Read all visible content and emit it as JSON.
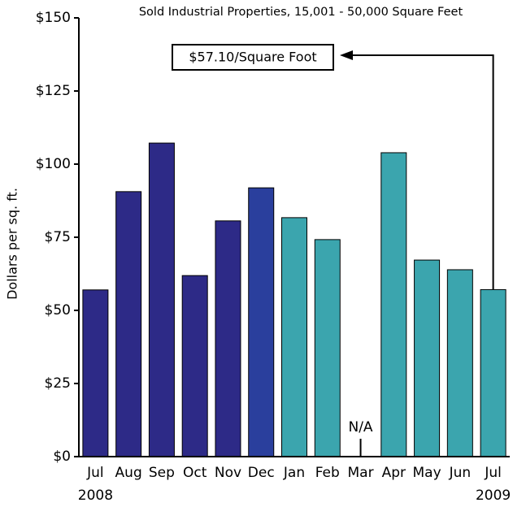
{
  "chart_data": {
    "type": "bar",
    "title": "Sold Industrial Properties, 15,001 - 50,000 Square Feet",
    "y_label": "Dollars per sq. ft.",
    "categories": [
      "Jul",
      "Aug",
      "Sep",
      "Oct",
      "Nov",
      "Dec",
      "Jan",
      "Feb",
      "Mar",
      "Apr",
      "May",
      "Jun",
      "Jul"
    ],
    "year_labels": [
      "2008",
      "2009"
    ],
    "values": [
      57,
      90.6,
      107.2,
      61.9,
      80.6,
      91.9,
      81.7,
      74.2,
      null,
      103.9,
      67.2,
      63.9,
      57.1
    ],
    "colors": [
      "#2d2a87",
      "#2d2a87",
      "#2d2a87",
      "#2d2a87",
      "#2d2a87",
      "#2a3f9d",
      "#3ba5ae",
      "#3ba5ae",
      "#3ba5ae",
      "#3ba5ae",
      "#3ba5ae",
      "#3ba5ae",
      "#3ba5ae"
    ],
    "null_label": "N/A",
    "annotation": "$57.10/Square Foot",
    "ylim": [
      0,
      150
    ],
    "yticks": [
      {
        "value": 0,
        "label": "$0"
      },
      {
        "value": 25,
        "label": "$25"
      },
      {
        "value": 50,
        "label": "$50"
      },
      {
        "value": 75,
        "label": "$75"
      },
      {
        "value": 100,
        "label": "$100"
      },
      {
        "value": 125,
        "label": "$125"
      },
      {
        "value": 150,
        "label": "$150"
      }
    ],
    "grid": false
  }
}
